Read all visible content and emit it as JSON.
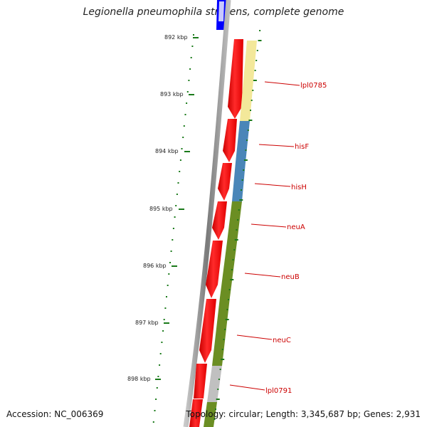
{
  "title": "Legionella pneumophila str. Lens, complete genome",
  "footer": {
    "accession": "Accession: NC_006369",
    "summary": "Topology: circular; Length: 3,345,687 bp; Genes: 2,931"
  },
  "ticks": [
    "892 kbp",
    "893 kbp",
    "894 kbp",
    "895 kbp",
    "896 kbp",
    "897 kbp",
    "898 kbp"
  ],
  "genes": [
    {
      "label": "lpl0785",
      "color": "#f3e89a"
    },
    {
      "label": "hisF",
      "color": "#4a86b8"
    },
    {
      "label": "hisH",
      "color": "#4a86b8"
    },
    {
      "label": "neuA",
      "color": "#6b8e23"
    },
    {
      "label": "neuB",
      "color": "#6b8e23"
    },
    {
      "label": "neuC",
      "color": "#6b8e23"
    },
    {
      "label": "lpl0791",
      "color": "#c0c0c0"
    }
  ],
  "colors": {
    "backbone": "#808080",
    "cds": "#ff0000",
    "tick": "#1a7a1a",
    "marker": "#0000ff",
    "label_line": "#cc0000"
  }
}
